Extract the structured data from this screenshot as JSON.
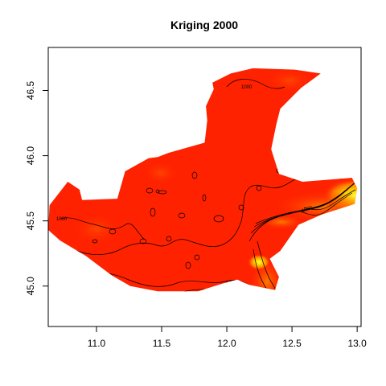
{
  "chart_data": {
    "type": "heatmap",
    "title": "Kriging 2000",
    "xlabel": "",
    "ylabel": "",
    "xlim": [
      10.63,
      13.03
    ],
    "ylim": [
      44.69,
      46.83
    ],
    "x_ticks": [
      11.0,
      11.5,
      12.0,
      12.5,
      13.0
    ],
    "x_tick_labels": [
      "11.0",
      "11.5",
      "12.0",
      "12.5",
      "13.0"
    ],
    "y_ticks": [
      45.0,
      45.5,
      46.0,
      46.5
    ],
    "y_tick_labels": [
      "45.0",
      "45.5",
      "46.0",
      "46.5"
    ],
    "grid": false,
    "colors": {
      "base": "#ff2200",
      "mid": "#ff5a00",
      "high": "#ffaa00",
      "peak": "#ffff33",
      "contour": "#000000"
    },
    "region_outline": [
      [
        10.64,
        45.62
      ],
      [
        10.78,
        45.8
      ],
      [
        10.87,
        45.74
      ],
      [
        10.89,
        45.66
      ],
      [
        11.16,
        45.67
      ],
      [
        11.22,
        45.88
      ],
      [
        11.4,
        45.98
      ],
      [
        11.47,
        45.99
      ],
      [
        11.55,
        46.02
      ],
      [
        11.83,
        46.1
      ],
      [
        11.85,
        46.27
      ],
      [
        11.84,
        46.38
      ],
      [
        11.9,
        46.51
      ],
      [
        11.89,
        46.56
      ],
      [
        12.03,
        46.63
      ],
      [
        12.2,
        46.67
      ],
      [
        12.52,
        46.66
      ],
      [
        12.72,
        46.63
      ],
      [
        12.57,
        46.52
      ],
      [
        12.41,
        46.36
      ],
      [
        12.38,
        46.24
      ],
      [
        12.34,
        46.05
      ],
      [
        12.4,
        45.86
      ],
      [
        12.58,
        45.8
      ],
      [
        12.96,
        45.83
      ],
      [
        13.0,
        45.75
      ],
      [
        12.98,
        45.63
      ],
      [
        12.73,
        45.55
      ],
      [
        12.55,
        45.47
      ],
      [
        12.41,
        45.27
      ],
      [
        12.33,
        45.21
      ],
      [
        12.4,
        45.07
      ],
      [
        12.37,
        44.97
      ],
      [
        12.17,
        45.01
      ],
      [
        12.08,
        45.05
      ],
      [
        11.97,
        45.02
      ],
      [
        11.78,
        44.96
      ],
      [
        11.47,
        44.96
      ],
      [
        11.26,
        45.0
      ],
      [
        11.12,
        45.08
      ],
      [
        10.92,
        45.23
      ],
      [
        10.72,
        45.35
      ],
      [
        10.63,
        45.43
      ]
    ],
    "annotations": [
      "1000",
      "1000",
      "1000"
    ]
  }
}
